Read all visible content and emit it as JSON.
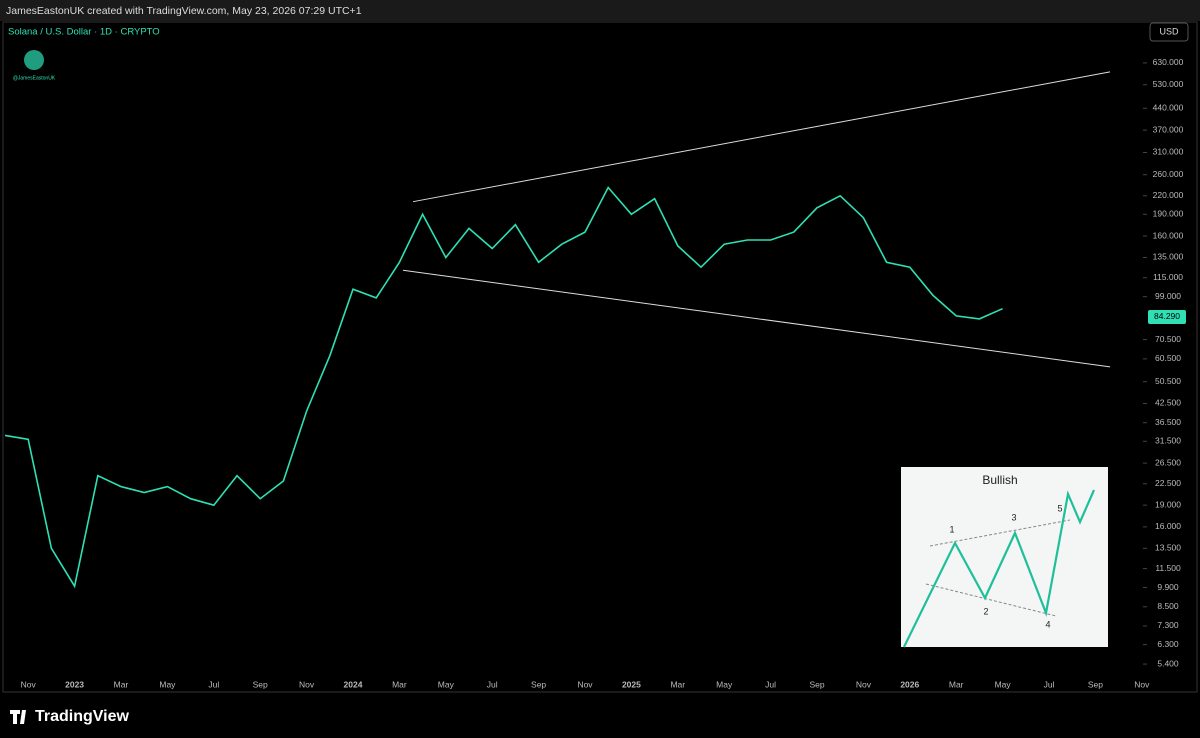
{
  "header": {
    "credit": "JamesEastonUK created with TradingView.com, May 23, 2026 07:29 UTC+1"
  },
  "chart_data": {
    "type": "line",
    "title": "Solana / U.S. Dollar · 1D · CRYPTO",
    "watermark": "@JamesEastonUK",
    "currency": "USD",
    "log_scale": true,
    "categories": [
      null,
      "Nov",
      null,
      "2023",
      null,
      "Mar",
      null,
      "May",
      null,
      "Jul",
      null,
      "Sep",
      null,
      "Nov",
      null,
      "2024",
      null,
      "Mar",
      null,
      "May",
      null,
      "Jul",
      null,
      "Sep",
      null,
      "Nov",
      null,
      "2025",
      null,
      "Mar",
      null,
      "May",
      null,
      "Jul",
      null,
      "Sep",
      null,
      "Nov",
      null,
      "2026",
      null,
      "Mar",
      null,
      "May",
      null,
      "Jul",
      null,
      "Sep",
      null,
      "Nov"
    ],
    "series": [
      {
        "name": "SOLUSD",
        "color": "#2ee0b4",
        "values": [
          33,
          32,
          13.5,
          10,
          24,
          22,
          21,
          22,
          20,
          19,
          24,
          20,
          23,
          40,
          62,
          105,
          98,
          130,
          190,
          135,
          170,
          145,
          175,
          130,
          150,
          165,
          235,
          190,
          215,
          148,
          125,
          150,
          155,
          155,
          165,
          200,
          220,
          185,
          130,
          125,
          100,
          85,
          83,
          90,
          null,
          null,
          null,
          null,
          null,
          null
        ]
      }
    ],
    "last_price": {
      "value": 84.29,
      "label": "84.290"
    },
    "ylim": [
      4.76,
      726
    ],
    "yticks": [
      {
        "value": 630,
        "label": "630.000"
      },
      {
        "value": 530,
        "label": "530.000"
      },
      {
        "value": 440,
        "label": "440.000"
      },
      {
        "value": 370,
        "label": "370.000"
      },
      {
        "value": 310,
        "label": "310.000"
      },
      {
        "value": 260,
        "label": "260.000"
      },
      {
        "value": 220,
        "label": "220.000"
      },
      {
        "value": 190,
        "label": "190.000"
      },
      {
        "value": 160,
        "label": "160.000"
      },
      {
        "value": 135,
        "label": "135.000"
      },
      {
        "value": 115,
        "label": "115.000"
      },
      {
        "value": 99,
        "label": "99.000"
      },
      {
        "value": 70.5,
        "label": "70.500"
      },
      {
        "value": 60.5,
        "label": "60.500"
      },
      {
        "value": 50.5,
        "label": "50.500"
      },
      {
        "value": 42.5,
        "label": "42.500"
      },
      {
        "value": 36.5,
        "label": "36.500"
      },
      {
        "value": 31.5,
        "label": "31.500"
      },
      {
        "value": 26.5,
        "label": "26.500"
      },
      {
        "value": 22.5,
        "label": "22.500"
      },
      {
        "value": 19,
        "label": "19.000"
      },
      {
        "value": 16,
        "label": "16.000"
      },
      {
        "value": 13.5,
        "label": "13.500"
      },
      {
        "value": 11.5,
        "label": "11.500"
      },
      {
        "value": 9.9,
        "label": "9.900"
      },
      {
        "value": 8.5,
        "label": "8.500"
      },
      {
        "value": 7.3,
        "label": "7.300"
      },
      {
        "value": 6.3,
        "label": "6.300"
      },
      {
        "value": 5.4,
        "label": "5.400"
      }
    ],
    "trendlines": [
      {
        "values": [
          210,
          587
        ]
      },
      {
        "values": [
          122,
          56.8
        ]
      }
    ],
    "inset": {
      "title": "Bullish",
      "labels": [
        "1",
        "2",
        "3",
        "4",
        "5"
      ]
    }
  },
  "footer": {
    "brand": "TradingView"
  }
}
